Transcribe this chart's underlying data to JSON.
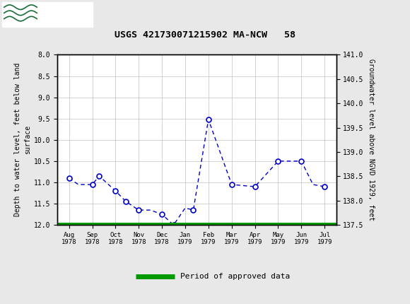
{
  "title": "USGS 421730071215902 MA-NCW   58",
  "x_labels": [
    "Aug\n1978",
    "Sep\n1978",
    "Oct\n1978",
    "Nov\n1978",
    "Dec\n1978",
    "Jan\n1979",
    "Feb\n1979",
    "Mar\n1979",
    "Apr\n1979",
    "May\n1979",
    "Jun\n1979",
    "Jul\n1979"
  ],
  "ylabel_left": "Depth to water level, feet below land\nsurface",
  "ylabel_right": "Groundwater level above NGVD 1929, feet",
  "ylim_left": [
    8.0,
    12.0
  ],
  "ylim_right": [
    137.5,
    141.0
  ],
  "yticks_left": [
    8.0,
    8.5,
    9.0,
    9.5,
    10.0,
    10.5,
    11.0,
    11.5,
    12.0
  ],
  "yticks_right": [
    137.5,
    138.0,
    138.5,
    139.0,
    139.5,
    140.0,
    140.5,
    141.0
  ],
  "line_color": "#0000cc",
  "marker_face": "#ffffff",
  "marker_edge": "#0000cc",
  "header_bg": "#1a6b3a",
  "legend_line_color": "#009900",
  "background_color": "#e8e8e8",
  "plot_bg": "#ffffff",
  "grid_color": "#c0c0c0",
  "line_points": [
    [
      0,
      10.9
    ],
    [
      0.4,
      11.05
    ],
    [
      1.0,
      11.05
    ],
    [
      1.3,
      10.85
    ],
    [
      2.0,
      11.2
    ],
    [
      2.45,
      11.45
    ],
    [
      3.0,
      11.65
    ],
    [
      3.5,
      11.65
    ],
    [
      4.0,
      11.75
    ],
    [
      4.5,
      12.0
    ],
    [
      5.0,
      11.6
    ],
    [
      5.35,
      11.65
    ],
    [
      6.0,
      9.52
    ],
    [
      7.0,
      11.05
    ],
    [
      8.0,
      11.1
    ],
    [
      9.0,
      10.5
    ],
    [
      10.0,
      10.5
    ],
    [
      10.5,
      11.05
    ],
    [
      11.0,
      11.1
    ]
  ],
  "circle_points": [
    [
      0,
      10.9
    ],
    [
      1.0,
      11.05
    ],
    [
      1.3,
      10.85
    ],
    [
      2.0,
      11.2
    ],
    [
      2.45,
      11.45
    ],
    [
      3.0,
      11.65
    ],
    [
      4.0,
      11.75
    ],
    [
      4.5,
      12.0
    ],
    [
      5.35,
      11.65
    ],
    [
      6.0,
      9.52
    ],
    [
      7.0,
      11.05
    ],
    [
      8.0,
      11.1
    ],
    [
      9.0,
      10.5
    ],
    [
      10.0,
      10.5
    ],
    [
      11.0,
      11.1
    ]
  ]
}
